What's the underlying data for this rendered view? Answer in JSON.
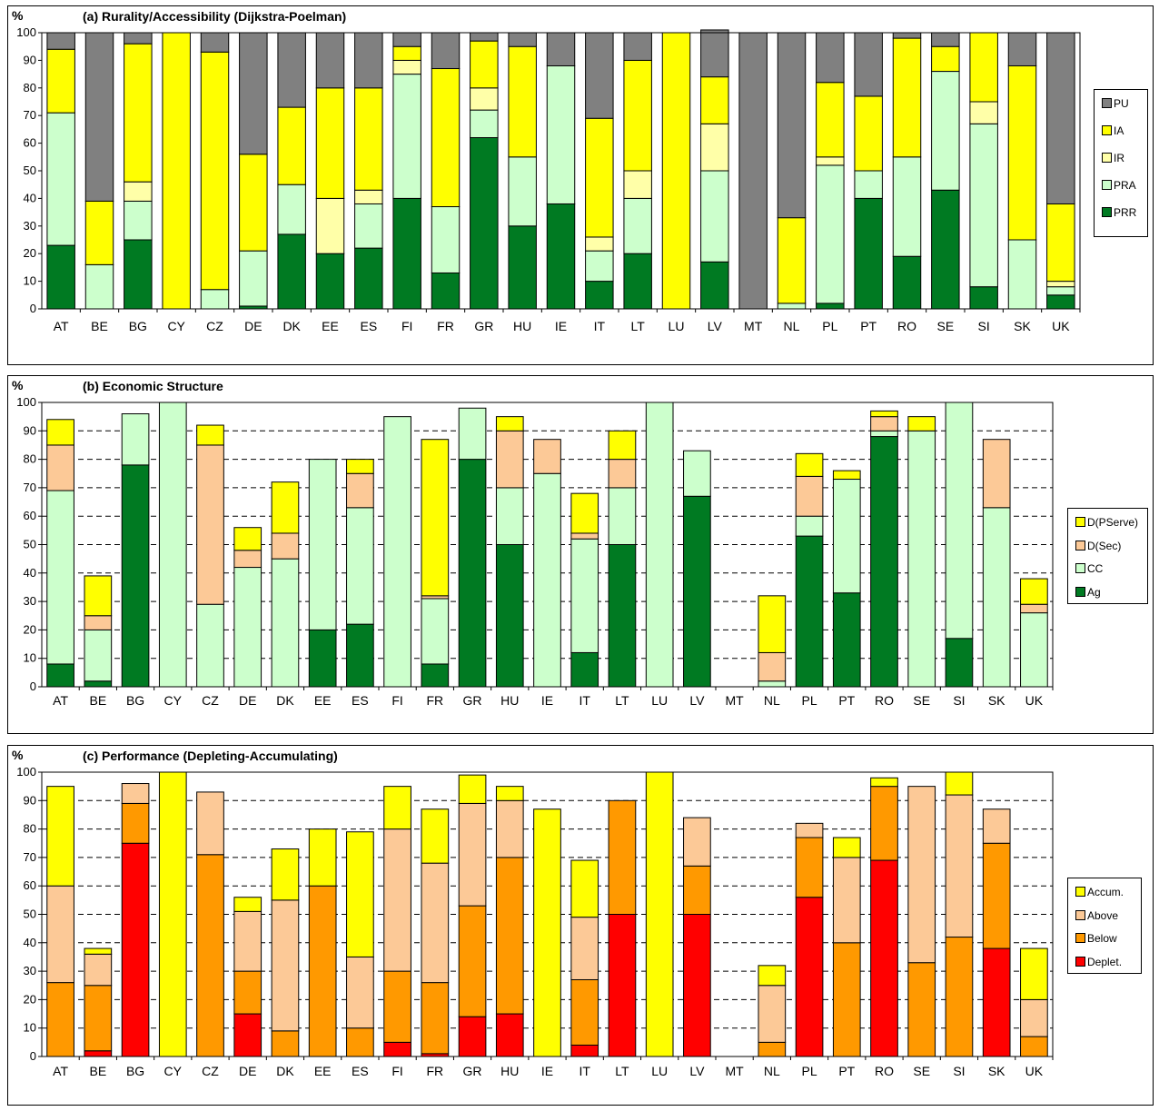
{
  "colors": {
    "PU": "#808080",
    "IA": "#ffff00",
    "IR": "#ffffa8",
    "PRA": "#ccffcc",
    "PRR": "#007a22",
    "DPServe": "#ffff00",
    "DSec": "#fcc997",
    "CC": "#ccffcc",
    "Ag": "#007a22",
    "Accum": "#ffff00",
    "Above": "#fcc997",
    "Below": "#ff9900",
    "Deplet": "#ff0000"
  },
  "chart_data": [
    {
      "type": "bar",
      "stacked": true,
      "title": "(a) Rurality/Accessibility (Dijkstra-Poelman)",
      "ylabel": "%",
      "ylim": [
        0,
        100
      ],
      "yticks": [
        "0",
        "10",
        "20",
        "30",
        "40",
        "50",
        "60",
        "70",
        "80",
        "90",
        "100"
      ],
      "grid": false,
      "legend_position": "right",
      "categories": [
        "AT",
        "BE",
        "BG",
        "CY",
        "CZ",
        "DE",
        "DK",
        "EE",
        "ES",
        "FI",
        "FR",
        "GR",
        "HU",
        "IE",
        "IT",
        "LT",
        "LU",
        "LV",
        "MT",
        "NL",
        "PL",
        "PT",
        "RO",
        "SE",
        "SI",
        "SK",
        "UK"
      ],
      "series": [
        {
          "name": "PRR",
          "color_key": "PRR",
          "values": [
            23,
            0,
            25,
            0,
            0,
            1,
            27,
            20,
            22,
            40,
            13,
            62,
            30,
            38,
            10,
            20,
            0,
            17,
            0,
            0,
            2,
            40,
            19,
            43,
            8,
            0,
            5
          ]
        },
        {
          "name": "PRA",
          "color_key": "PRA",
          "values": [
            48,
            16,
            14,
            0,
            7,
            20,
            18,
            0,
            16,
            45,
            24,
            10,
            25,
            50,
            11,
            20,
            0,
            33,
            0,
            2,
            50,
            10,
            36,
            43,
            59,
            25,
            3
          ]
        },
        {
          "name": "IR",
          "color_key": "IR",
          "values": [
            0,
            0,
            7,
            0,
            0,
            0,
            0,
            20,
            5,
            5,
            0,
            8,
            0,
            0,
            5,
            10,
            0,
            17,
            0,
            0,
            3,
            0,
            0,
            0,
            8,
            0,
            2
          ]
        },
        {
          "name": "IA",
          "color_key": "IA",
          "values": [
            23,
            23,
            50,
            100,
            86,
            35,
            28,
            40,
            37,
            5,
            50,
            17,
            40,
            0,
            43,
            40,
            100,
            17,
            0,
            31,
            27,
            27,
            43,
            9,
            25,
            63,
            28
          ]
        },
        {
          "name": "PU",
          "color_key": "PU",
          "values": [
            6,
            61,
            4,
            0,
            7,
            44,
            27,
            20,
            20,
            5,
            13,
            3,
            5,
            12,
            31,
            10,
            0,
            17,
            100,
            67,
            18,
            23,
            2,
            5,
            0,
            12,
            62
          ]
        }
      ],
      "legend": [
        "PU",
        "IA",
        "IR",
        "PRA",
        "PRR"
      ]
    },
    {
      "type": "bar",
      "stacked": true,
      "title": "(b) Economic Structure",
      "ylabel": "%",
      "ylim": [
        0,
        100
      ],
      "yticks": [
        "0",
        "10",
        "20",
        "30",
        "40",
        "50",
        "60",
        "70",
        "80",
        "90",
        "100"
      ],
      "grid": true,
      "legend_position": "right",
      "categories": [
        "AT",
        "BE",
        "BG",
        "CY",
        "CZ",
        "DE",
        "DK",
        "EE",
        "ES",
        "FI",
        "FR",
        "GR",
        "HU",
        "IE",
        "IT",
        "LT",
        "LU",
        "LV",
        "MT",
        "NL",
        "PL",
        "PT",
        "RO",
        "SE",
        "SI",
        "SK",
        "UK"
      ],
      "series": [
        {
          "name": "Ag",
          "color_key": "Ag",
          "values": [
            8,
            2,
            78,
            0,
            0,
            0,
            0,
            20,
            22,
            0,
            8,
            80,
            50,
            0,
            12,
            50,
            0,
            67,
            0,
            0,
            53,
            33,
            88,
            0,
            17,
            0,
            0
          ]
        },
        {
          "name": "CC",
          "color_key": "CC",
          "values": [
            61,
            18,
            18,
            100,
            29,
            42,
            45,
            60,
            41,
            95,
            23,
            18,
            20,
            75,
            40,
            20,
            100,
            16,
            0,
            2,
            7,
            40,
            2,
            90,
            83,
            63,
            26
          ]
        },
        {
          "name": "D(Sec)",
          "color_key": "DSec",
          "values": [
            16,
            5,
            0,
            0,
            56,
            6,
            9,
            0,
            12,
            0,
            1,
            0,
            20,
            12,
            2,
            10,
            0,
            0,
            0,
            10,
            14,
            0,
            5,
            0,
            0,
            24,
            3
          ]
        },
        {
          "name": "D(PServe)",
          "color_key": "DPServe",
          "values": [
            9,
            14,
            0,
            0,
            7,
            8,
            18,
            0,
            5,
            0,
            55,
            0,
            5,
            0,
            14,
            10,
            0,
            0,
            0,
            20,
            8,
            3,
            2,
            5,
            0,
            0,
            9
          ]
        }
      ],
      "legend": [
        "D(PServe)",
        "D(Sec)",
        "CC",
        "Ag"
      ]
    },
    {
      "type": "bar",
      "stacked": true,
      "title": "(c) Performance (Depleting-Accumulating)",
      "ylabel": "%",
      "ylim": [
        0,
        100
      ],
      "yticks": [
        "0",
        "10",
        "20",
        "30",
        "40",
        "50",
        "60",
        "70",
        "80",
        "90",
        "100"
      ],
      "grid": true,
      "legend_position": "right",
      "categories": [
        "AT",
        "BE",
        "BG",
        "CY",
        "CZ",
        "DE",
        "DK",
        "EE",
        "ES",
        "FI",
        "FR",
        "GR",
        "HU",
        "IE",
        "IT",
        "LT",
        "LU",
        "LV",
        "MT",
        "NL",
        "PL",
        "PT",
        "RO",
        "SE",
        "SI",
        "SK",
        "UK"
      ],
      "series": [
        {
          "name": "Deplet.",
          "color_key": "Deplet",
          "values": [
            0,
            2,
            75,
            0,
            0,
            15,
            0,
            0,
            0,
            5,
            1,
            14,
            15,
            0,
            4,
            50,
            0,
            50,
            0,
            0,
            56,
            0,
            69,
            0,
            0,
            38,
            0
          ]
        },
        {
          "name": "Below",
          "color_key": "Below",
          "values": [
            26,
            23,
            14,
            0,
            71,
            15,
            9,
            60,
            10,
            25,
            25,
            39,
            55,
            0,
            23,
            40,
            0,
            17,
            0,
            5,
            21,
            40,
            26,
            33,
            42,
            37,
            7
          ]
        },
        {
          "name": "Above",
          "color_key": "Above",
          "values": [
            34,
            11,
            7,
            0,
            22,
            21,
            46,
            0,
            25,
            50,
            42,
            36,
            20,
            0,
            22,
            0,
            0,
            17,
            0,
            20,
            5,
            30,
            0,
            62,
            50,
            12,
            13
          ]
        },
        {
          "name": "Accum.",
          "color_key": "Accum",
          "values": [
            35,
            2,
            0,
            100,
            0,
            5,
            18,
            20,
            44,
            15,
            19,
            10,
            5,
            87,
            20,
            0,
            100,
            0,
            0,
            7,
            0,
            7,
            3,
            0,
            8,
            0,
            18
          ]
        }
      ],
      "legend": [
        "Accum.",
        "Above",
        "Below",
        "Deplet."
      ]
    }
  ]
}
